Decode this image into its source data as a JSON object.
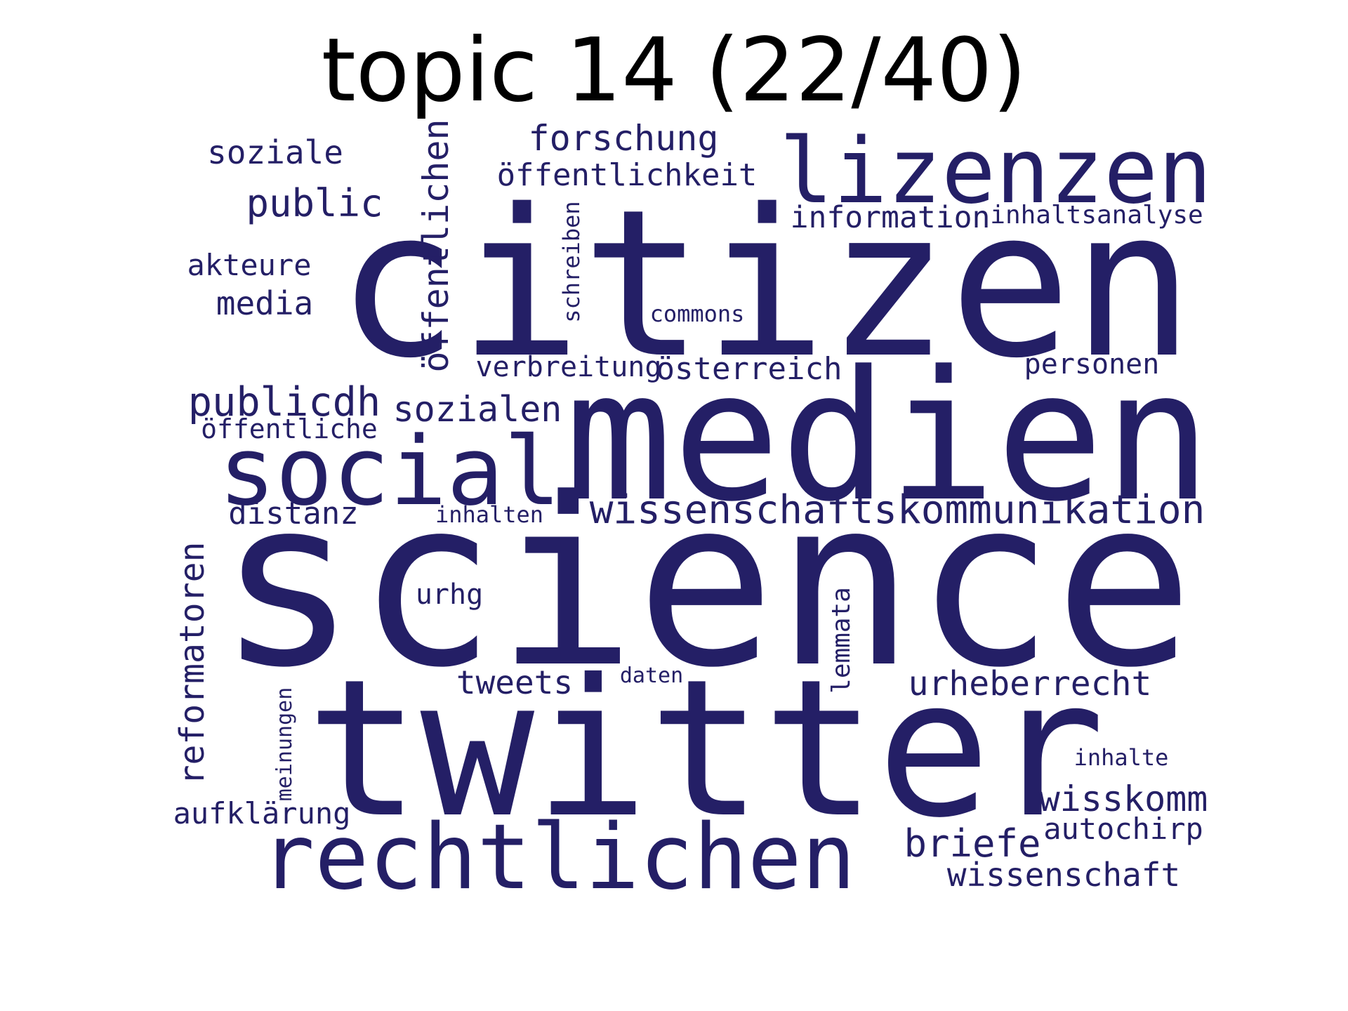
{
  "title": "topic 14 (22/40)",
  "word_color": "#241f66",
  "words": [
    {
      "text": "science",
      "weight": 1.0,
      "rotated": false
    },
    {
      "text": "citizen",
      "weight": 0.93,
      "rotated": false
    },
    {
      "text": "twitter",
      "weight": 0.88,
      "rotated": false
    },
    {
      "text": "medien",
      "weight": 0.82,
      "rotated": false
    },
    {
      "text": "social",
      "weight": 0.52,
      "rotated": false
    },
    {
      "text": "rechtlichen",
      "weight": 0.5,
      "rotated": false
    },
    {
      "text": "lizenzen",
      "weight": 0.47,
      "rotated": false
    },
    {
      "text": "wissenschaftskommunikation",
      "weight": 0.22,
      "rotated": false
    },
    {
      "text": "publicdh",
      "weight": 0.2,
      "rotated": false
    },
    {
      "text": "briefe",
      "weight": 0.2,
      "rotated": false
    },
    {
      "text": "öffentlichen",
      "weight": 0.19,
      "rotated": true
    },
    {
      "text": "public",
      "weight": 0.19,
      "rotated": false
    },
    {
      "text": "reformatoren",
      "weight": 0.18,
      "rotated": true
    },
    {
      "text": "sozialen",
      "weight": 0.17,
      "rotated": false
    },
    {
      "text": "forschung",
      "weight": 0.17,
      "rotated": false
    },
    {
      "text": "wisskomm",
      "weight": 0.17,
      "rotated": false
    },
    {
      "text": "urheberrecht",
      "weight": 0.16,
      "rotated": false
    },
    {
      "text": "soziale",
      "weight": 0.16,
      "rotated": false
    },
    {
      "text": "tweets",
      "weight": 0.16,
      "rotated": false
    },
    {
      "text": "media",
      "weight": 0.16,
      "rotated": false
    },
    {
      "text": "wissenschaft",
      "weight": 0.15,
      "rotated": false
    },
    {
      "text": "distanz",
      "weight": 0.15,
      "rotated": false
    },
    {
      "text": "öffentlichkeit",
      "weight": 0.15,
      "rotated": false
    },
    {
      "text": "österreich",
      "weight": 0.15,
      "rotated": false
    },
    {
      "text": "information",
      "weight": 0.14,
      "rotated": false
    },
    {
      "text": "aufklärung",
      "weight": 0.14,
      "rotated": false
    },
    {
      "text": "autochirp",
      "weight": 0.14,
      "rotated": false
    },
    {
      "text": "akteure",
      "weight": 0.14,
      "rotated": false
    },
    {
      "text": "verbreitung",
      "weight": 0.14,
      "rotated": false
    },
    {
      "text": "personen",
      "weight": 0.14,
      "rotated": false
    },
    {
      "text": "öffentliche",
      "weight": 0.13,
      "rotated": false
    },
    {
      "text": "urhg",
      "weight": 0.13,
      "rotated": false
    },
    {
      "text": "lemmata",
      "weight": 0.13,
      "rotated": true
    },
    {
      "text": "inhaltsanalyse",
      "weight": 0.12,
      "rotated": false
    },
    {
      "text": "schreiben",
      "weight": 0.11,
      "rotated": true
    },
    {
      "text": "commons",
      "weight": 0.11,
      "rotated": false
    },
    {
      "text": "inhalten",
      "weight": 0.11,
      "rotated": false
    },
    {
      "text": "meinungen",
      "weight": 0.1,
      "rotated": true
    },
    {
      "text": "inhalte",
      "weight": 0.11,
      "rotated": false
    },
    {
      "text": "daten",
      "weight": 0.1,
      "rotated": false
    }
  ]
}
